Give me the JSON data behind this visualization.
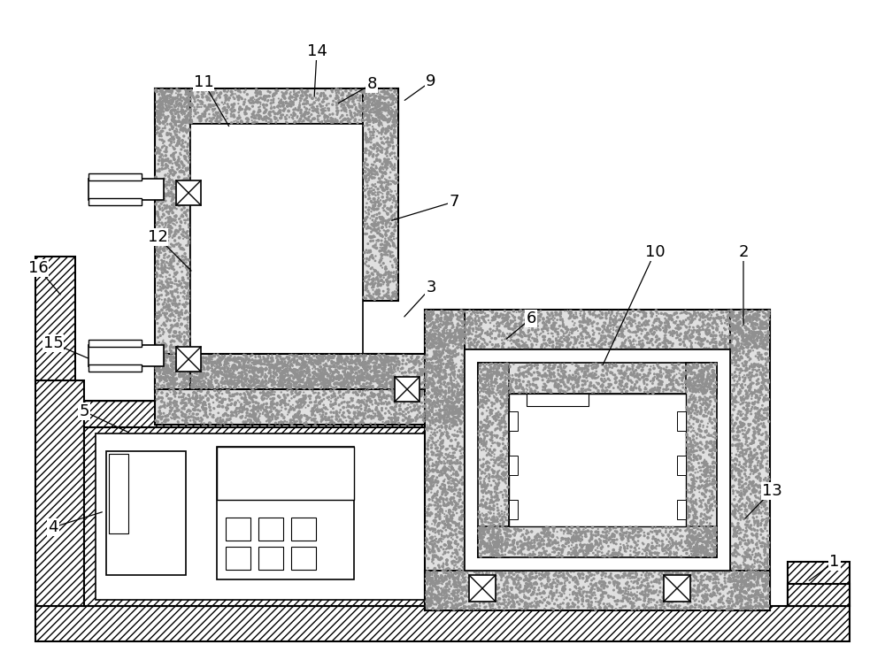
{
  "bg_color": "#ffffff",
  "gravel_light": "#e8e8e8",
  "gravel_dark": "#b0b0b0"
}
